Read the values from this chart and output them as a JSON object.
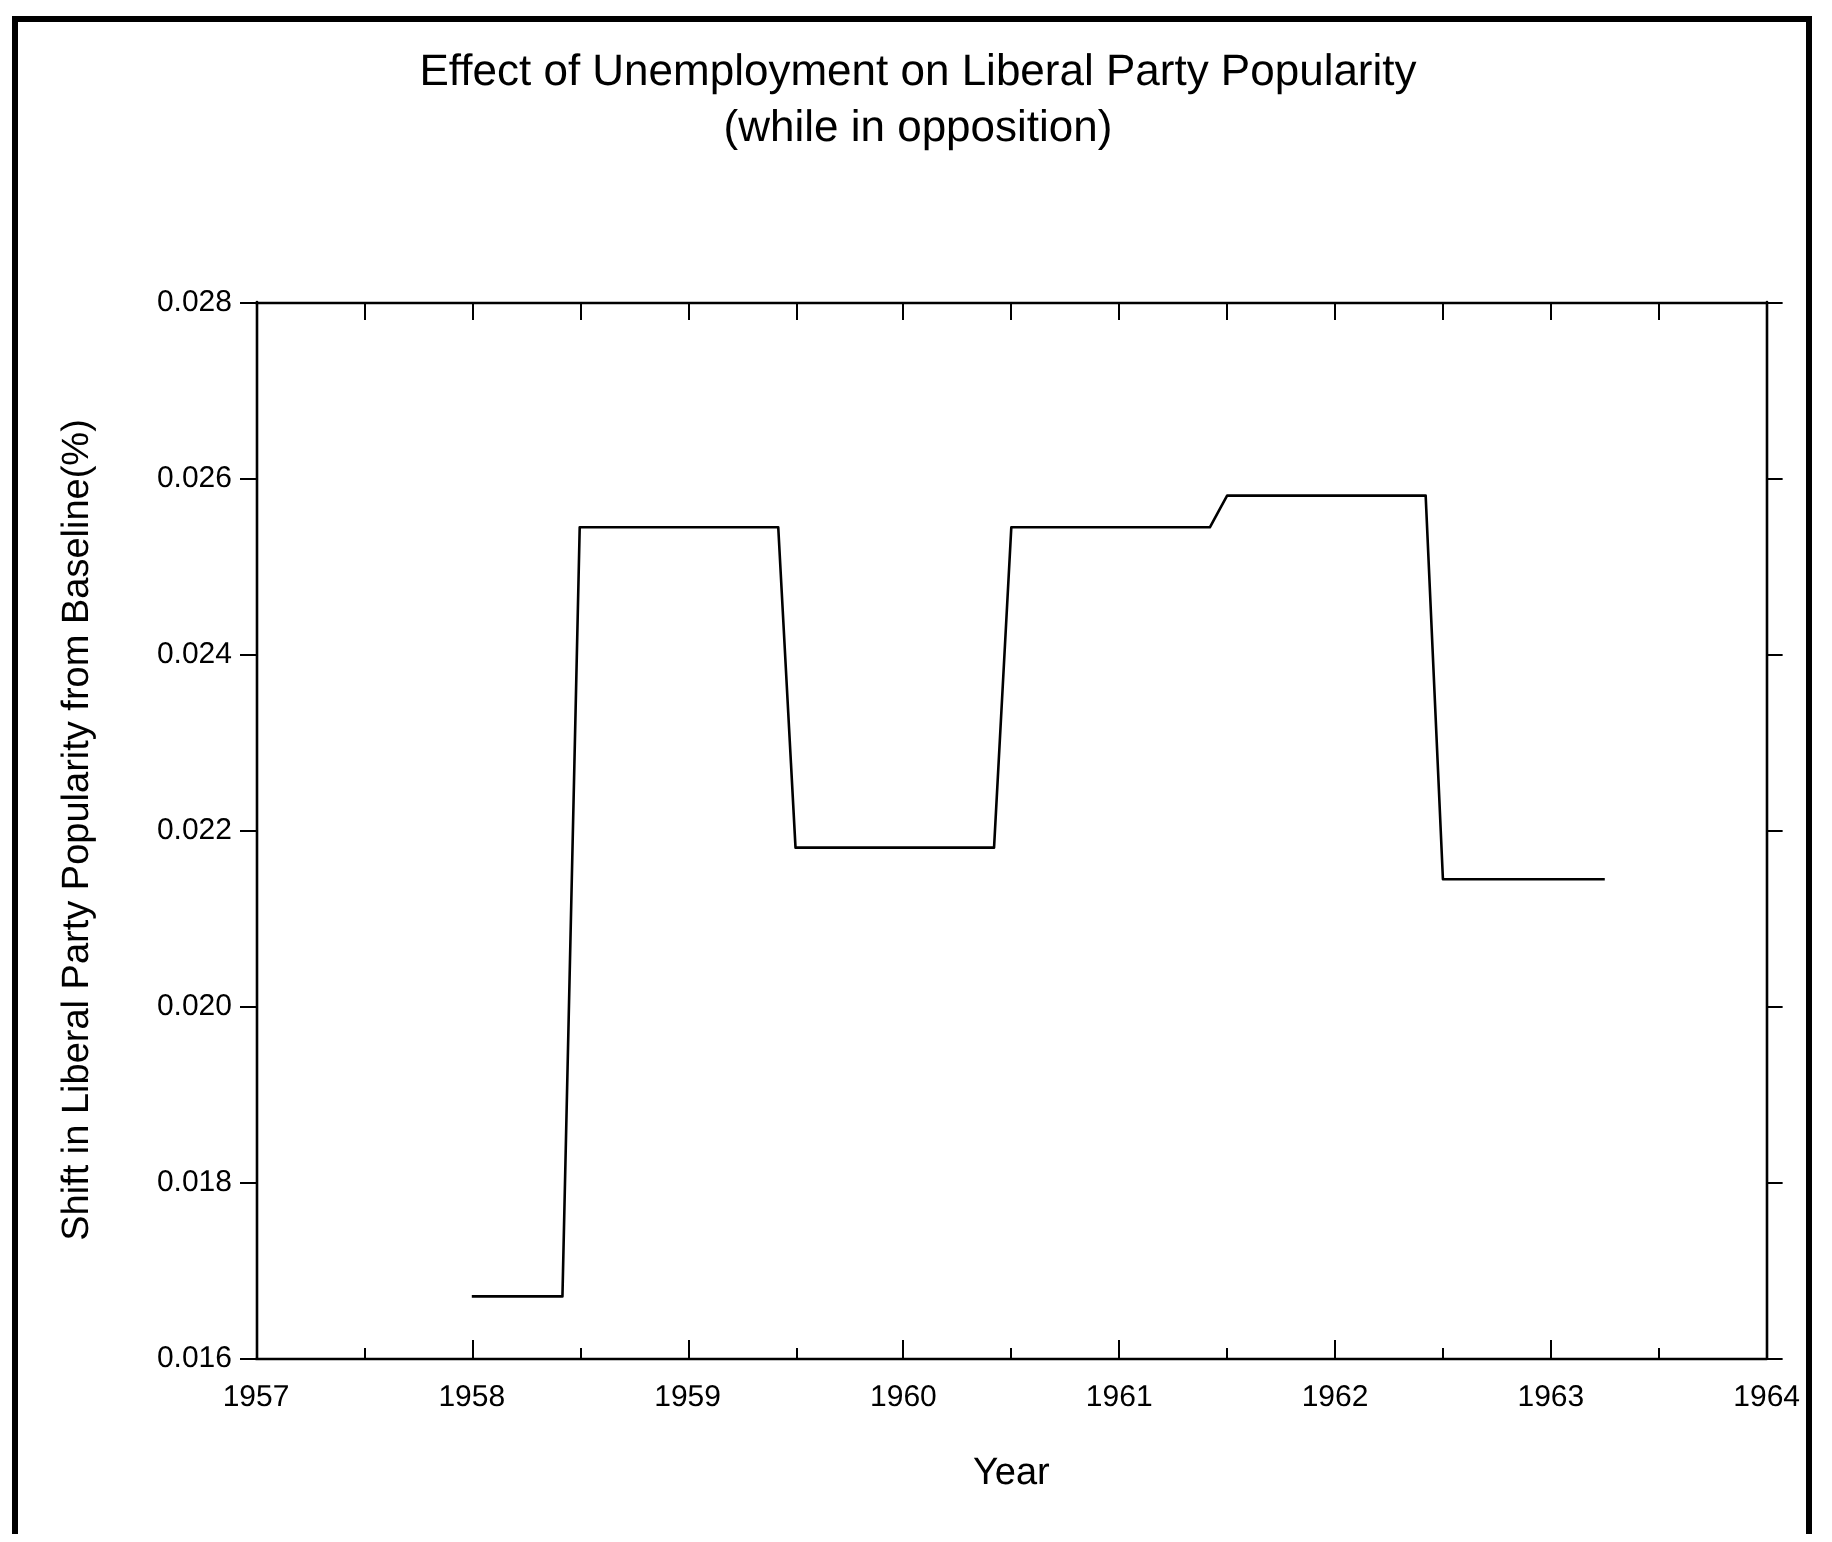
{
  "chart_data": {
    "type": "line",
    "title": "Effect of Unemployment on Liberal Party Popularity",
    "subtitle": "(while in opposition)",
    "xlabel": "Year",
    "ylabel": "Shift in Liberal Party Popularity from Baseline(%)",
    "x": [
      1958,
      1958.42,
      1958.5,
      1959.42,
      1959.5,
      1960.42,
      1960.5,
      1961.42,
      1961.5,
      1962.42,
      1962.5,
      1963.25
    ],
    "series": [
      {
        "color": "#000000",
        "values": [
          0.0167,
          0.0167,
          0.02544,
          0.02544,
          0.0218,
          0.0218,
          0.02544,
          0.02544,
          0.0258,
          0.0258,
          0.02144,
          0.02144
        ]
      }
    ],
    "xlim": [
      1957,
      1964
    ],
    "xticks": [
      1957,
      1958,
      1959,
      1960,
      1961,
      1962,
      1963,
      1964
    ],
    "ylim": [
      0.016,
      0.028
    ],
    "yticks": [
      0.016,
      0.018,
      {
        "value": 0.02,
        "label": "0.020"
      },
      0.022,
      0.024,
      0.026,
      0.028
    ],
    "marker": "none",
    "line_style": "solid"
  }
}
